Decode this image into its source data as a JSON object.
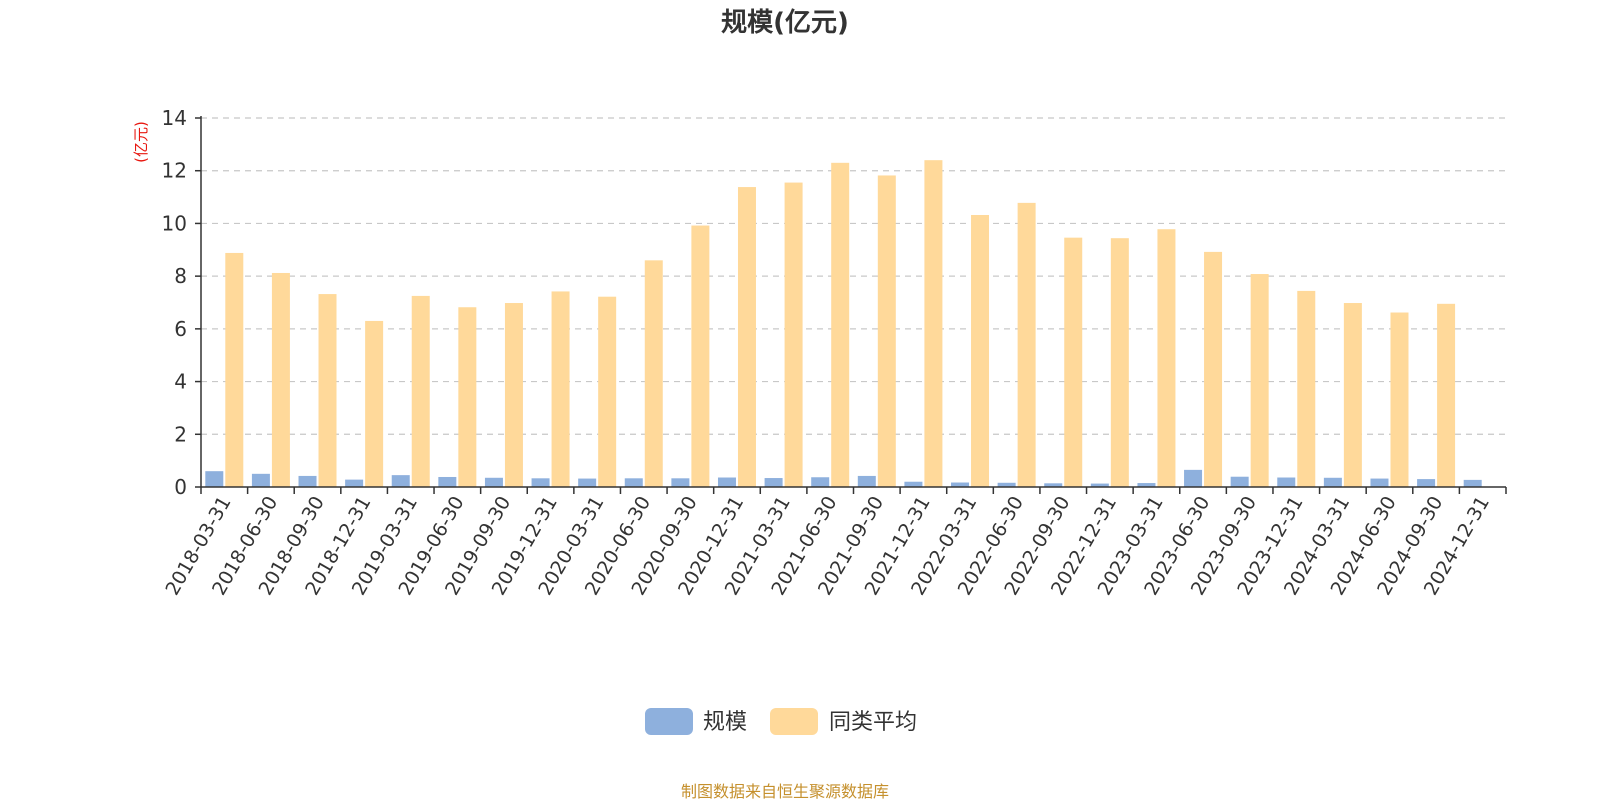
{
  "chart_data": {
    "type": "bar",
    "title": "规模(亿元)",
    "ylabel": "(亿元)",
    "ylim": [
      0,
      14
    ],
    "yticks": [
      0,
      2,
      4,
      6,
      8,
      10,
      12,
      14
    ],
    "grid": true,
    "legend_position": "bottom-center",
    "categories": [
      "2018-03-31",
      "2018-06-30",
      "2018-09-30",
      "2018-12-31",
      "2019-03-31",
      "2019-06-30",
      "2019-09-30",
      "2019-12-31",
      "2020-03-31",
      "2020-06-30",
      "2020-09-30",
      "2020-12-31",
      "2021-03-31",
      "2021-06-30",
      "2021-09-30",
      "2021-12-31",
      "2022-03-31",
      "2022-06-30",
      "2022-09-30",
      "2022-12-31",
      "2023-03-31",
      "2023-06-30",
      "2023-09-30",
      "2023-12-31",
      "2024-03-31",
      "2024-06-30",
      "2024-09-30",
      "2024-12-31"
    ],
    "series": [
      {
        "name": "规模",
        "color": "#8eb0dd",
        "values": [
          0.6,
          0.5,
          0.42,
          0.28,
          0.45,
          0.38,
          0.35,
          0.33,
          0.32,
          0.33,
          0.33,
          0.36,
          0.34,
          0.37,
          0.42,
          0.2,
          0.17,
          0.16,
          0.14,
          0.13,
          0.15,
          0.65,
          0.39,
          0.36,
          0.35,
          0.32,
          0.3,
          0.27
        ]
      },
      {
        "name": "同类平均",
        "color": "#ffd99a",
        "values": [
          8.88,
          8.12,
          7.32,
          6.3,
          7.25,
          6.82,
          6.98,
          7.42,
          7.22,
          8.6,
          9.92,
          11.38,
          11.55,
          12.3,
          11.82,
          12.4,
          10.32,
          10.78,
          9.46,
          9.44,
          9.78,
          8.92,
          8.08,
          7.44,
          6.98,
          6.62,
          6.95,
          null
        ]
      }
    ]
  },
  "footer": "制图数据来自恒生聚源数据库"
}
